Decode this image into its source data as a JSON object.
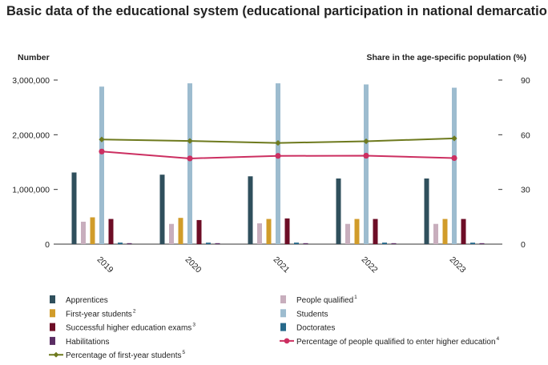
{
  "title": "Basic data of the educational system (educational participation in national demarcation)",
  "chart_data": {
    "type": "bar",
    "title": "Basic data of the educational system (educational participation in national demarcation)",
    "categories": [
      "2019",
      "2020",
      "2021",
      "2022",
      "2023"
    ],
    "y_left": {
      "label": "Number",
      "ylim": [
        0,
        3000000
      ],
      "ticks": [
        "0",
        "1,000,000",
        "2,000,000",
        "3,000,000"
      ],
      "tick_values": [
        0,
        1000000,
        2000000,
        3000000
      ]
    },
    "y_right": {
      "label": "Share in the age-specific population (%)",
      "ylim": [
        0,
        90
      ],
      "ticks": [
        "0",
        "30",
        "60",
        "90"
      ],
      "tick_values": [
        0,
        30,
        60,
        90
      ]
    },
    "grid": false,
    "legend_position": "bottom",
    "bar_series": [
      {
        "name": "Apprentices",
        "sup": "",
        "color": "#2f4f5c",
        "values": [
          1310000,
          1270000,
          1240000,
          1200000,
          1200000
        ]
      },
      {
        "name": "People qualified",
        "sup": "1",
        "color": "#c8aebd",
        "values": [
          410000,
          370000,
          380000,
          370000,
          370000
        ]
      },
      {
        "name": "First-year students",
        "sup": "2",
        "color": "#d19c2a",
        "values": [
          490000,
          480000,
          460000,
          460000,
          460000
        ]
      },
      {
        "name": "Students",
        "sup": "",
        "color": "#9dbccf",
        "values": [
          2880000,
          2940000,
          2940000,
          2920000,
          2860000
        ]
      },
      {
        "name": "Successful higher education exams",
        "sup": "3",
        "color": "#6d0d26",
        "values": [
          460000,
          440000,
          470000,
          460000,
          460000
        ]
      },
      {
        "name": "Doctorates",
        "sup": "",
        "color": "#27698a",
        "values": [
          28000,
          27000,
          28000,
          28000,
          27000
        ]
      },
      {
        "name": "Habilitations",
        "sup": "",
        "color": "#5a2d63",
        "values": [
          1500,
          1500,
          1500,
          1500,
          1500
        ]
      }
    ],
    "line_series": [
      {
        "name": "Percentage of people qualified to enter higher education",
        "sup": "4",
        "color": "#cc2f61",
        "values": [
          50.8,
          47.0,
          48.4,
          48.5,
          47.2
        ]
      },
      {
        "name": "Percentage of first-year students",
        "sup": "5",
        "color": "#6e7a1e",
        "values": [
          57.4,
          56.6,
          55.5,
          56.4,
          58.0
        ]
      }
    ],
    "legend": [
      {
        "name": "Apprentices",
        "sup": "",
        "kind": "bar",
        "color": "#2f4f5c"
      },
      {
        "name": "People qualified",
        "sup": "1",
        "kind": "bar",
        "color": "#c8aebd"
      },
      {
        "name": "First-year students",
        "sup": "2",
        "kind": "bar",
        "color": "#d19c2a"
      },
      {
        "name": "Students",
        "sup": "",
        "kind": "bar",
        "color": "#9dbccf"
      },
      {
        "name": "Successful higher education exams",
        "sup": "3",
        "kind": "bar",
        "color": "#6d0d26"
      },
      {
        "name": "Doctorates",
        "sup": "",
        "kind": "bar",
        "color": "#27698a"
      },
      {
        "name": "Habilitations",
        "sup": "",
        "kind": "bar",
        "color": "#5a2d63"
      },
      {
        "name": "Percentage of people qualified to enter higher education",
        "sup": "4",
        "kind": "line",
        "color": "#cc2f61"
      },
      {
        "name": "Percentage of first-year students",
        "sup": "5",
        "kind": "line",
        "color": "#6e7a1e"
      }
    ]
  }
}
